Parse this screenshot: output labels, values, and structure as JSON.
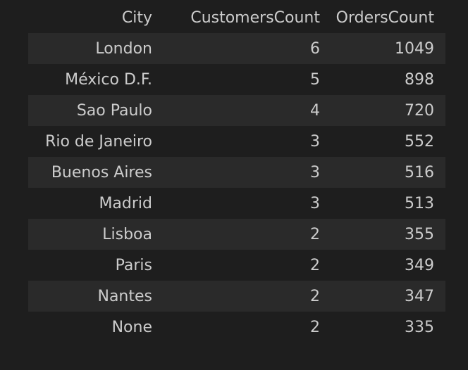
{
  "table": {
    "headers": [
      "City",
      "CustomersCount",
      "OrdersCount"
    ],
    "rows": [
      [
        "London",
        "6",
        "1049"
      ],
      [
        "México D.F.",
        "5",
        "898"
      ],
      [
        "Sao Paulo",
        "4",
        "720"
      ],
      [
        "Rio de Janeiro",
        "3",
        "552"
      ],
      [
        "Buenos Aires",
        "3",
        "516"
      ],
      [
        "Madrid",
        "3",
        "513"
      ],
      [
        "Lisboa",
        "2",
        "355"
      ],
      [
        "Paris",
        "2",
        "349"
      ],
      [
        "Nantes",
        "2",
        "347"
      ],
      [
        "None",
        "2",
        "335"
      ]
    ]
  },
  "colors": {
    "background": "#1e1e1e",
    "stripe": "#2a2a2a",
    "text": "#cccccc"
  }
}
